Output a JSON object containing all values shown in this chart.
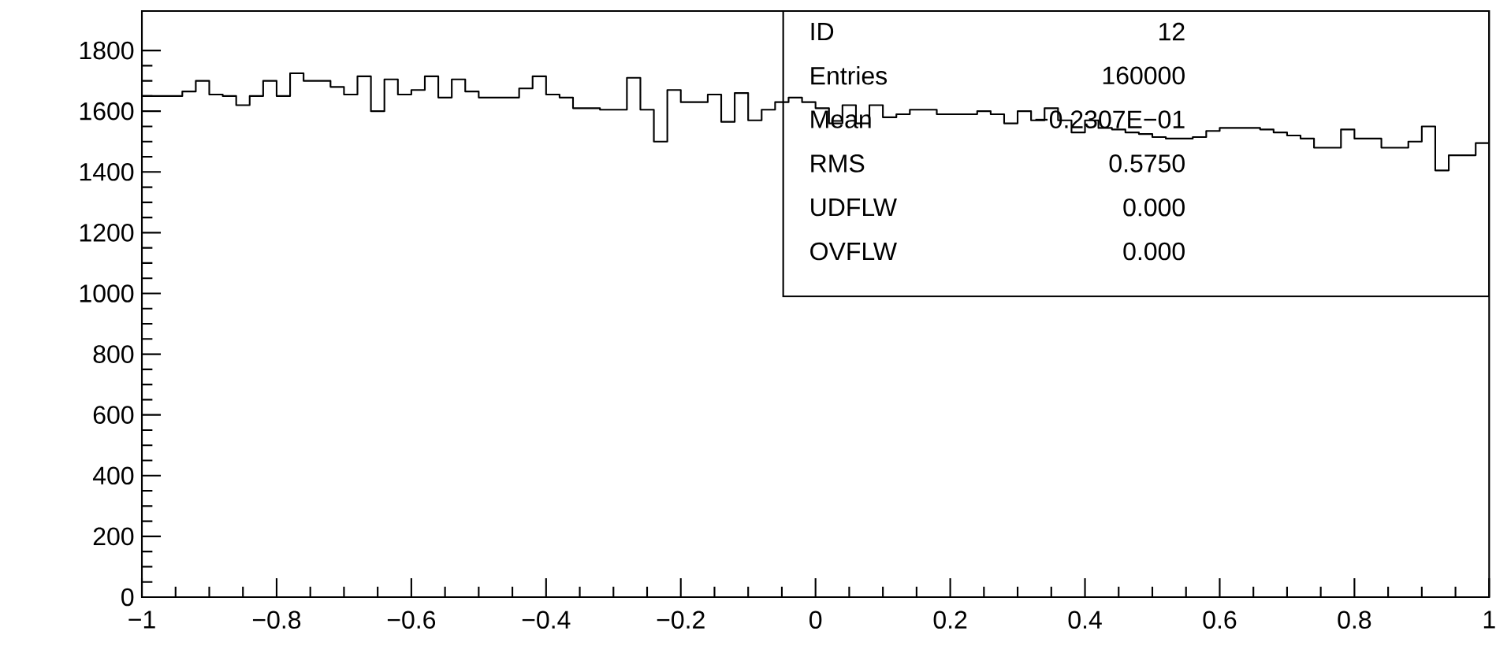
{
  "chart_data": {
    "type": "histogram",
    "bins": [
      -1,
      -0.98,
      -0.96,
      -0.94,
      -0.92,
      -0.9,
      -0.88,
      -0.86,
      -0.84,
      -0.82,
      -0.8,
      -0.78,
      -0.76,
      -0.74,
      -0.72,
      -0.7,
      -0.68,
      -0.66,
      -0.64,
      -0.62,
      -0.6,
      -0.58,
      -0.56,
      -0.54,
      -0.52,
      -0.5,
      -0.48,
      -0.46,
      -0.44,
      -0.42,
      -0.4,
      -0.38,
      -0.36,
      -0.34,
      -0.32,
      -0.3,
      -0.28,
      -0.26,
      -0.24,
      -0.22,
      -0.2,
      -0.18,
      -0.16,
      -0.14,
      -0.12,
      -0.1,
      -0.08,
      -0.06,
      -0.04,
      -0.02,
      0,
      0.02,
      0.04,
      0.06,
      0.08,
      0.1,
      0.12,
      0.14,
      0.16,
      0.18,
      0.2,
      0.22,
      0.24,
      0.26,
      0.28,
      0.3,
      0.32,
      0.34,
      0.36,
      0.38,
      0.4,
      0.42,
      0.44,
      0.46,
      0.48,
      0.5,
      0.52,
      0.54,
      0.56,
      0.58,
      0.6,
      0.62,
      0.64,
      0.66,
      0.68,
      0.7,
      0.72,
      0.74,
      0.76,
      0.78,
      0.8,
      0.82,
      0.84,
      0.86,
      0.88,
      0.9,
      0.92,
      0.94,
      0.96,
      0.98,
      1
    ],
    "values": [
      1650,
      1650,
      1650,
      1665,
      1700,
      1655,
      1650,
      1620,
      1650,
      1700,
      1650,
      1725,
      1700,
      1700,
      1680,
      1655,
      1715,
      1600,
      1705,
      1655,
      1670,
      1715,
      1645,
      1705,
      1665,
      1645,
      1645,
      1645,
      1675,
      1715,
      1655,
      1645,
      1610,
      1610,
      1605,
      1605,
      1710,
      1605,
      1500,
      1670,
      1630,
      1630,
      1655,
      1565,
      1660,
      1570,
      1605,
      1630,
      1645,
      1630,
      1610,
      1560,
      1620,
      1560,
      1620,
      1580,
      1590,
      1605,
      1605,
      1590,
      1590,
      1590,
      1600,
      1590,
      1560,
      1600,
      1570,
      1610,
      1570,
      1530,
      1570,
      1545,
      1540,
      1530,
      1525,
      1515,
      1510,
      1510,
      1515,
      1535,
      1545,
      1545,
      1545,
      1540,
      1530,
      1520,
      1510,
      1480,
      1480,
      1540,
      1510,
      1510,
      1480,
      1480,
      1500,
      1550,
      1405,
      1455,
      1455,
      1495
    ],
    "color": "#000000",
    "xlim": [
      -1,
      1
    ],
    "ylim": [
      0,
      1930
    ],
    "xticks": [
      {
        "value": -1,
        "label": "−1"
      },
      {
        "value": -0.8,
        "label": "−0.8"
      },
      {
        "value": -0.6,
        "label": "−0.6"
      },
      {
        "value": -0.4,
        "label": "−0.4"
      },
      {
        "value": -0.2,
        "label": "−0.2"
      },
      0,
      0.2,
      0.4,
      0.6,
      0.8,
      1
    ],
    "yticks": [
      0,
      200,
      400,
      600,
      800,
      1000,
      1200,
      1400,
      1600,
      1800
    ],
    "grid": false,
    "annotations": [
      "ID",
      "12",
      "Entries",
      "160000",
      "Mean",
      "−0.2307E−01",
      "RMS",
      "0.5750",
      "UDFLW",
      "0.000",
      "OVFLW",
      "0.000"
    ]
  }
}
